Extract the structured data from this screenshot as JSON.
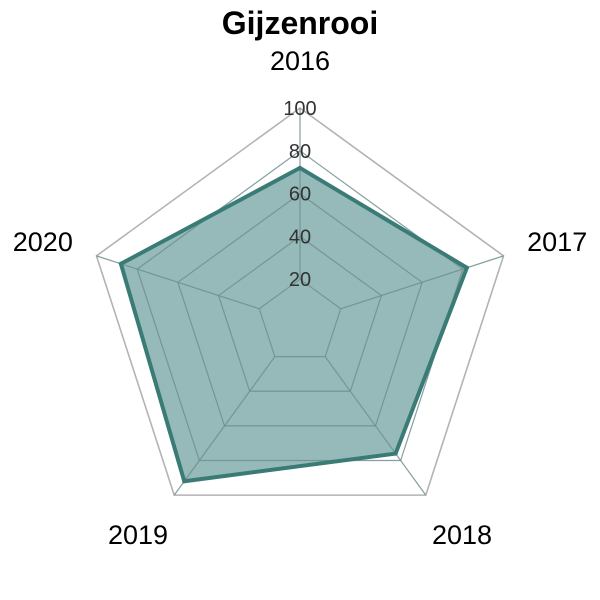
{
  "chart_data": {
    "type": "radar",
    "title": "Gijzenrooi",
    "categories": [
      "2016",
      "2017",
      "2018",
      "2019",
      "2020"
    ],
    "series": [
      {
        "values": [
          72,
          82,
          76,
          92,
          88
        ],
        "color": "#3a7b76",
        "fill_color": "#4f8c8b"
      }
    ],
    "rlim": [
      0,
      100
    ],
    "ticks": [
      20,
      40,
      60,
      80,
      100
    ],
    "tick_labels": [
      "20",
      "40",
      "60",
      "80",
      "100"
    ],
    "grid": true,
    "grid_color_outer": "#b3b3b3",
    "grid_color_inner": "#6f8f8e",
    "legend": "none"
  }
}
